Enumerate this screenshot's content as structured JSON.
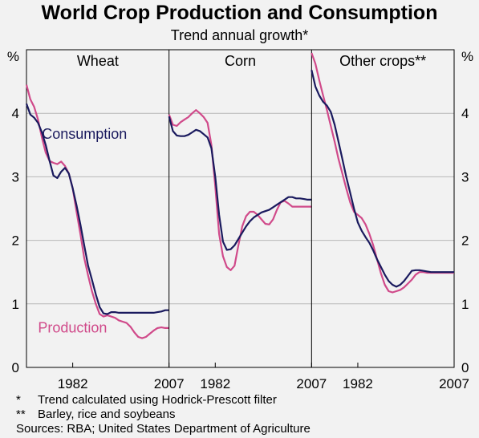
{
  "title": "World Crop Production and Consumption",
  "subtitle": "Trend annual growth*",
  "notes": [
    {
      "mark": "*",
      "text": "Trend calculated using Hodrick-Prescott filter"
    },
    {
      "mark": "**",
      "text": "Barley, rice and soybeans"
    },
    {
      "mark": "",
      "text": "Sources: RBA; United States Department of Agriculture"
    }
  ],
  "colors": {
    "consumption": "#1a1a5e",
    "production": "#d04a8a",
    "grid": "#b8b8b8",
    "background": "#f2f2f2"
  },
  "chart_data": {
    "type": "line",
    "ylabel_left": "%",
    "ylabel_right": "%",
    "ylim": [
      0,
      5
    ],
    "yticks": [
      0,
      1,
      2,
      3,
      4
    ],
    "xlim": [
      1970,
      2007
    ],
    "xticks": [
      1982,
      2007
    ],
    "grid": true,
    "panels": [
      {
        "title": "Wheat",
        "series": [
          {
            "name": "Consumption",
            "x": [
              1970,
              1971,
              1972,
              1973,
              1974,
              1975,
              1976,
              1977,
              1978,
              1979,
              1980,
              1981,
              1982,
              1983,
              1984,
              1985,
              1986,
              1987,
              1988,
              1989,
              1990,
              1991,
              1992,
              1993,
              1994,
              1995,
              1996,
              1997,
              1998,
              1999,
              2000,
              2001,
              2002,
              2003,
              2004,
              2005,
              2006,
              2007
            ],
            "values": [
              4.15,
              3.98,
              3.93,
              3.85,
              3.7,
              3.5,
              3.25,
              3.02,
              2.98,
              3.08,
              3.14,
              3.05,
              2.82,
              2.55,
              2.25,
              1.92,
              1.6,
              1.38,
              1.15,
              0.95,
              0.85,
              0.84,
              0.87,
              0.87,
              0.86,
              0.86,
              0.86,
              0.86,
              0.86,
              0.86,
              0.86,
              0.86,
              0.86,
              0.86,
              0.87,
              0.88,
              0.9,
              0.9
            ]
          },
          {
            "name": "Production",
            "x": [
              1970,
              1971,
              1972,
              1973,
              1974,
              1975,
              1976,
              1977,
              1978,
              1979,
              1980,
              1981,
              1982,
              1983,
              1984,
              1985,
              1986,
              1987,
              1988,
              1989,
              1990,
              1991,
              1992,
              1993,
              1994,
              1995,
              1996,
              1997,
              1998,
              1999,
              2000,
              2001,
              2002,
              2003,
              2004,
              2005,
              2006,
              2007
            ],
            "values": [
              4.45,
              4.22,
              4.1,
              3.9,
              3.62,
              3.38,
              3.25,
              3.22,
              3.2,
              3.24,
              3.17,
              3.05,
              2.82,
              2.45,
              2.1,
              1.72,
              1.45,
              1.2,
              1.0,
              0.84,
              0.8,
              0.82,
              0.8,
              0.78,
              0.74,
              0.72,
              0.7,
              0.64,
              0.55,
              0.48,
              0.46,
              0.48,
              0.53,
              0.58,
              0.62,
              0.63,
              0.62,
              0.62
            ]
          }
        ]
      },
      {
        "title": "Corn",
        "series": [
          {
            "name": "Consumption",
            "x": [
              1970,
              1971,
              1972,
              1973,
              1974,
              1975,
              1976,
              1977,
              1978,
              1979,
              1980,
              1981,
              1982,
              1983,
              1984,
              1985,
              1986,
              1987,
              1988,
              1989,
              1990,
              1991,
              1992,
              1993,
              1994,
              1995,
              1996,
              1997,
              1998,
              1999,
              2000,
              2001,
              2002,
              2003,
              2004,
              2005,
              2006,
              2007
            ],
            "values": [
              3.95,
              3.72,
              3.65,
              3.64,
              3.64,
              3.66,
              3.7,
              3.74,
              3.72,
              3.67,
              3.62,
              3.45,
              3.0,
              2.4,
              1.98,
              1.85,
              1.86,
              1.92,
              2.02,
              2.12,
              2.22,
              2.3,
              2.36,
              2.4,
              2.44,
              2.46,
              2.48,
              2.52,
              2.56,
              2.6,
              2.64,
              2.68,
              2.68,
              2.66,
              2.66,
              2.65,
              2.64,
              2.64
            ]
          },
          {
            "name": "Production",
            "x": [
              1970,
              1971,
              1972,
              1973,
              1974,
              1975,
              1976,
              1977,
              1978,
              1979,
              1980,
              1981,
              1982,
              1983,
              1984,
              1985,
              1986,
              1987,
              1988,
              1989,
              1990,
              1991,
              1992,
              1993,
              1994,
              1995,
              1996,
              1997,
              1998,
              1999,
              2000,
              2001,
              2002,
              2003,
              2004,
              2005,
              2006,
              2007
            ],
            "values": [
              3.98,
              3.82,
              3.8,
              3.86,
              3.9,
              3.94,
              4.0,
              4.05,
              4.0,
              3.94,
              3.85,
              3.5,
              2.85,
              2.1,
              1.75,
              1.58,
              1.53,
              1.6,
              1.92,
              2.22,
              2.38,
              2.45,
              2.45,
              2.4,
              2.33,
              2.26,
              2.25,
              2.33,
              2.48,
              2.6,
              2.62,
              2.58,
              2.53,
              2.53,
              2.53,
              2.53,
              2.53,
              2.53
            ]
          }
        ]
      },
      {
        "title": "Other crops**",
        "series": [
          {
            "name": "Consumption",
            "x": [
              1970,
              1971,
              1972,
              1973,
              1974,
              1975,
              1976,
              1977,
              1978,
              1979,
              1980,
              1981,
              1982,
              1983,
              1984,
              1985,
              1986,
              1987,
              1988,
              1989,
              1990,
              1991,
              1992,
              1993,
              1994,
              1995,
              1996,
              1997,
              1998,
              1999,
              2000,
              2001,
              2002,
              2003,
              2004,
              2005,
              2006,
              2007
            ],
            "values": [
              4.68,
              4.42,
              4.28,
              4.18,
              4.12,
              4.02,
              3.82,
              3.55,
              3.28,
              3.0,
              2.75,
              2.5,
              2.28,
              2.15,
              2.05,
              1.96,
              1.84,
              1.7,
              1.58,
              1.46,
              1.36,
              1.3,
              1.27,
              1.3,
              1.36,
              1.44,
              1.52,
              1.53,
              1.53,
              1.52,
              1.51,
              1.5,
              1.5,
              1.5,
              1.5,
              1.5,
              1.5,
              1.5
            ]
          },
          {
            "name": "Production",
            "x": [
              1970,
              1971,
              1972,
              1973,
              1974,
              1975,
              1976,
              1977,
              1978,
              1979,
              1980,
              1981,
              1982,
              1983,
              1984,
              1985,
              1986,
              1987,
              1988,
              1989,
              1990,
              1991,
              1992,
              1993,
              1994,
              1995,
              1996,
              1997,
              1998,
              1999,
              2000,
              2001,
              2002,
              2003,
              2004,
              2005,
              2006,
              2007
            ],
            "values": [
              4.95,
              4.78,
              4.52,
              4.28,
              4.05,
              3.8,
              3.55,
              3.28,
              3.05,
              2.82,
              2.6,
              2.45,
              2.4,
              2.35,
              2.25,
              2.1,
              1.92,
              1.7,
              1.48,
              1.3,
              1.2,
              1.18,
              1.2,
              1.22,
              1.26,
              1.32,
              1.38,
              1.46,
              1.5,
              1.5,
              1.49,
              1.49,
              1.49,
              1.49,
              1.49,
              1.49,
              1.49,
              1.49
            ]
          }
        ]
      }
    ],
    "annotations": [
      {
        "panel": 0,
        "text": "Consumption",
        "series": "Consumption",
        "at": [
          1974,
          3.6
        ]
      },
      {
        "panel": 0,
        "text": "Production",
        "series": "Production",
        "at": [
          1973,
          0.55
        ]
      }
    ]
  }
}
